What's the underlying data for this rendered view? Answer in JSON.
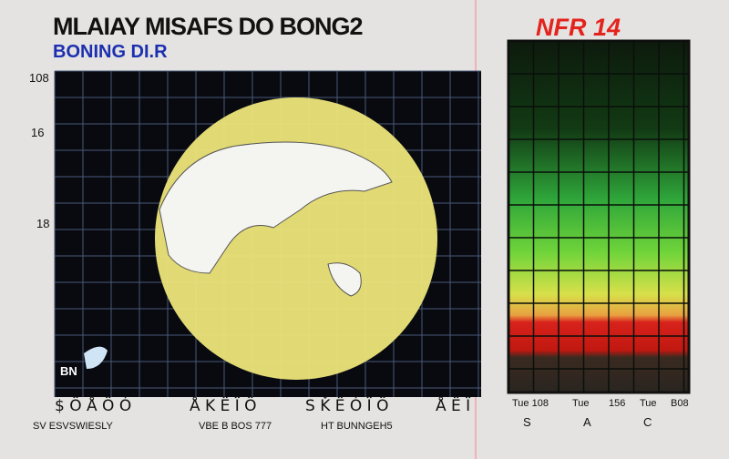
{
  "header": {
    "title": "MLAIAY MISAFS DO BONG2",
    "subtitle": "BONING DI.R",
    "badge": "NFR 14"
  },
  "left_panel": {
    "axis_labels": [
      "108",
      "16",
      "18"
    ],
    "corner_label": "BN",
    "bottom_labels": [
      "$ Ö Å Ö  Ó",
      "Å K Ë Ï Ö",
      "S Ǩ Ë Ó Ï Ö",
      "Å Ë Ï"
    ],
    "footer_labels": [
      "SV ESVSWIESLY",
      "VBE B BOS 777",
      "HT BUNNGEH5"
    ]
  },
  "right_panel": {
    "bottom_labels": [
      "Tue 108",
      "Tue",
      "156",
      "Tue",
      "B08"
    ],
    "letters": [
      "S",
      "A",
      "C"
    ]
  }
}
